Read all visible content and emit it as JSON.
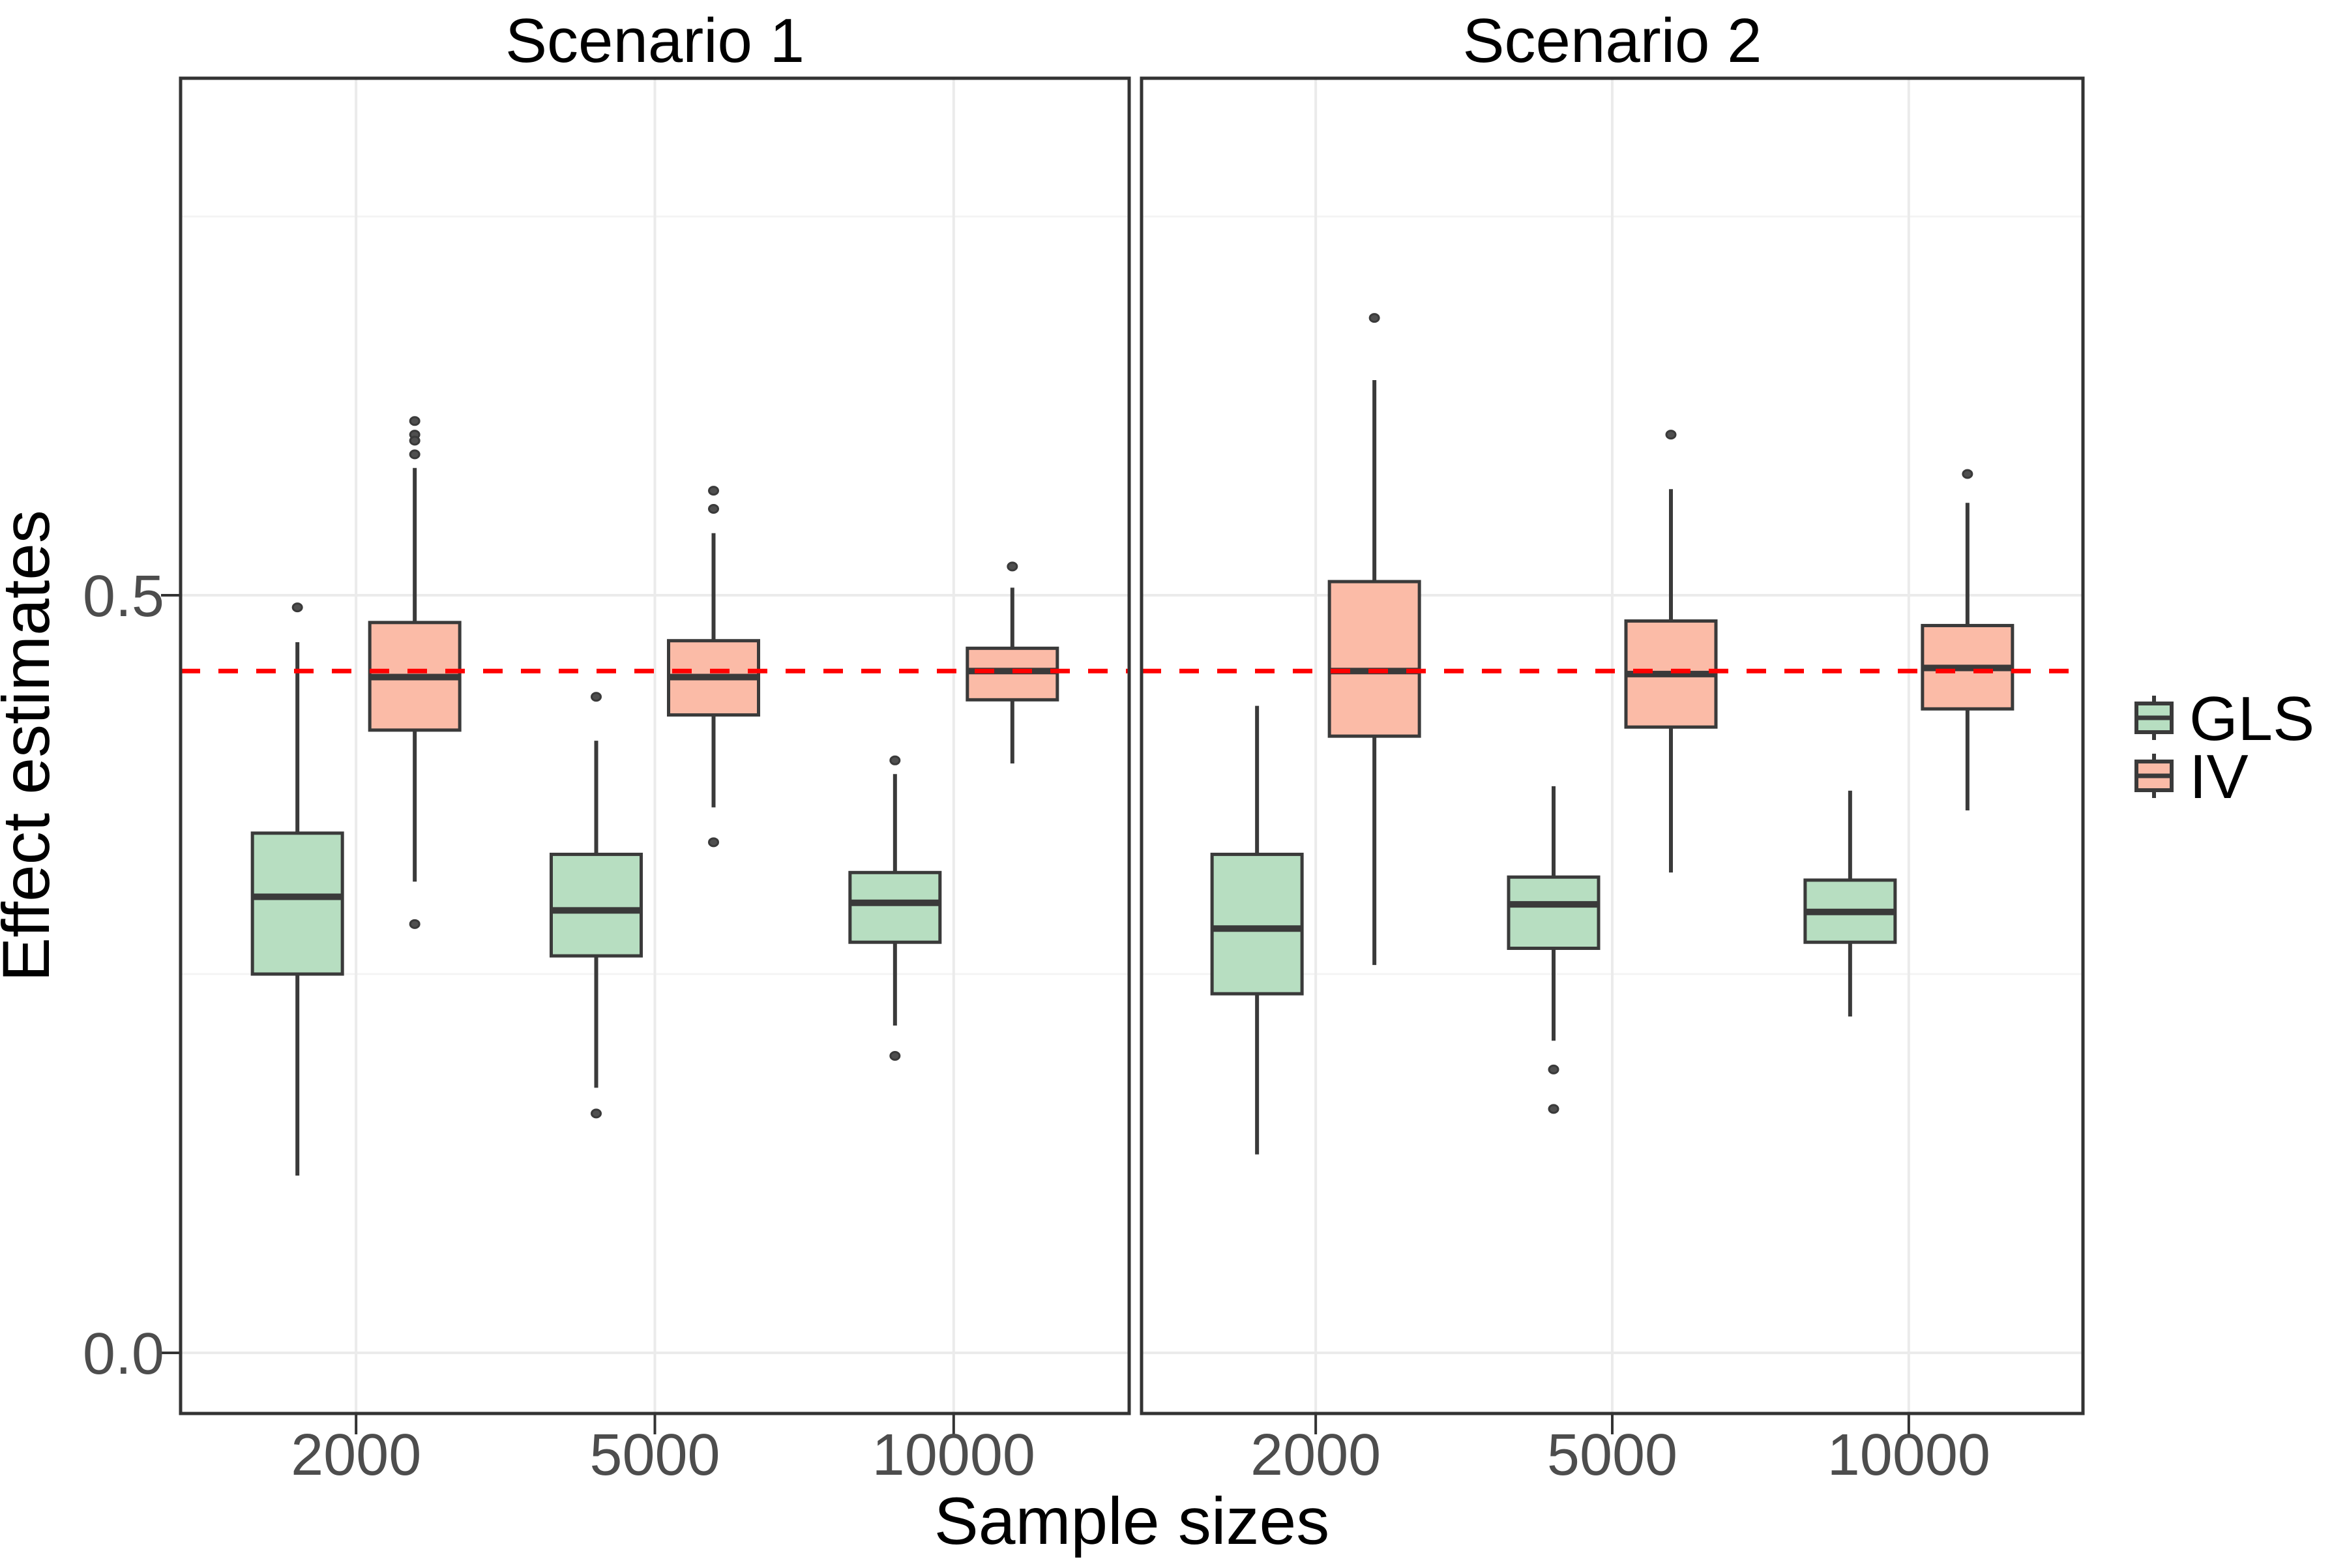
{
  "chart_data": {
    "type": "boxplot",
    "xlabel": "Sample sizes",
    "ylabel": "Effect estimates",
    "x_tick_labels": [
      "2000",
      "5000",
      "10000"
    ],
    "y_tick_labels": [
      "0.0",
      "0.5"
    ],
    "y_ticks": [
      0.0,
      0.5
    ],
    "y_minor_gridlines": [
      0.25,
      0.75
    ],
    "ylim": [
      -0.04,
      0.8412
    ],
    "grid": "on",
    "legend_position": "right",
    "facets": [
      {
        "label": "Scenario 1"
      },
      {
        "label": "Scenario 2"
      }
    ],
    "reference_line": {
      "value": 0.45,
      "color": "#FF0000",
      "style": "dashed"
    },
    "legend": {
      "items": [
        {
          "label": "GLS",
          "color": "#B7DEC1"
        },
        {
          "label": "IV",
          "color": "#FBBBA7"
        }
      ]
    },
    "palette": {
      "GLS": "#B7DEC1",
      "IV": "#FBBBA7",
      "box_border": "#3A3A3A",
      "median": "#3A3A3A",
      "outlier_fill": "#4F4F4F",
      "outlier_stroke": "#3A3A3A",
      "grid_major": "#EBEBEB",
      "grid_minor": "#F4F4F4",
      "panel_border": "#333333",
      "tick_label": "#4D4D4D",
      "axis_title": "#000000"
    },
    "boxes": [
      {
        "facet": "Scenario 1",
        "sample_size": "2000",
        "method": "GLS",
        "low": 0.117,
        "q1": 0.25,
        "median": 0.301,
        "q3": 0.343,
        "high": 0.469,
        "outliers": [
          0.492
        ]
      },
      {
        "facet": "Scenario 1",
        "sample_size": "2000",
        "method": "IV",
        "low": 0.311,
        "q1": 0.411,
        "median": 0.446,
        "q3": 0.482,
        "high": 0.584,
        "outliers": [
          0.615,
          0.606,
          0.602,
          0.593,
          0.283
        ]
      },
      {
        "facet": "Scenario 1",
        "sample_size": "5000",
        "method": "GLS",
        "low": 0.175,
        "q1": 0.262,
        "median": 0.292,
        "q3": 0.329,
        "high": 0.404,
        "outliers": [
          0.433,
          0.158
        ]
      },
      {
        "facet": "Scenario 1",
        "sample_size": "5000",
        "method": "IV",
        "low": 0.36,
        "q1": 0.421,
        "median": 0.446,
        "q3": 0.47,
        "high": 0.541,
        "outliers": [
          0.569,
          0.557,
          0.337
        ]
      },
      {
        "facet": "Scenario 1",
        "sample_size": "10000",
        "method": "GLS",
        "low": 0.216,
        "q1": 0.271,
        "median": 0.297,
        "q3": 0.317,
        "high": 0.382,
        "outliers": [
          0.391,
          0.196
        ]
      },
      {
        "facet": "Scenario 1",
        "sample_size": "10000",
        "method": "IV",
        "low": 0.389,
        "q1": 0.431,
        "median": 0.45,
        "q3": 0.465,
        "high": 0.505,
        "outliers": [
          0.519
        ]
      },
      {
        "facet": "Scenario 2",
        "sample_size": "2000",
        "method": "GLS",
        "low": 0.131,
        "q1": 0.237,
        "median": 0.28,
        "q3": 0.329,
        "high": 0.427,
        "outliers": []
      },
      {
        "facet": "Scenario 2",
        "sample_size": "2000",
        "method": "IV",
        "low": 0.256,
        "q1": 0.407,
        "median": 0.45,
        "q3": 0.509,
        "high": 0.642,
        "outliers": [
          0.683
        ]
      },
      {
        "facet": "Scenario 2",
        "sample_size": "5000",
        "method": "GLS",
        "low": 0.206,
        "q1": 0.267,
        "median": 0.296,
        "q3": 0.314,
        "high": 0.374,
        "outliers": [
          0.187,
          0.161
        ]
      },
      {
        "facet": "Scenario 2",
        "sample_size": "5000",
        "method": "IV",
        "low": 0.317,
        "q1": 0.413,
        "median": 0.448,
        "q3": 0.483,
        "high": 0.57,
        "outliers": [
          0.606
        ]
      },
      {
        "facet": "Scenario 2",
        "sample_size": "10000",
        "method": "GLS",
        "low": 0.222,
        "q1": 0.271,
        "median": 0.291,
        "q3": 0.312,
        "high": 0.371,
        "outliers": []
      },
      {
        "facet": "Scenario 2",
        "sample_size": "10000",
        "method": "IV",
        "low": 0.358,
        "q1": 0.425,
        "median": 0.452,
        "q3": 0.48,
        "high": 0.561,
        "outliers": [
          0.58
        ]
      }
    ]
  }
}
